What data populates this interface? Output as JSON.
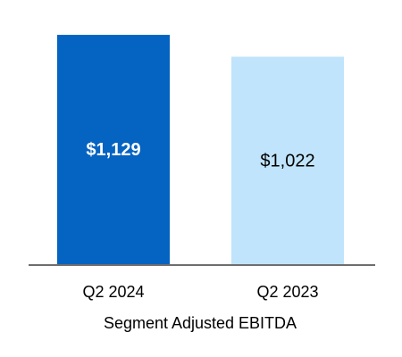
{
  "chart_data": {
    "type": "bar",
    "categories": [
      "Q2 2024",
      "Q2 2023"
    ],
    "values": [
      1129,
      1022
    ],
    "value_labels": [
      "$1,129",
      "$1,022"
    ],
    "xlabel": "Segment Adjusted EBITDA",
    "ylim": [
      0,
      1300
    ],
    "grid": false,
    "legend": "none",
    "colors": {
      "bars": [
        "#0563c1",
        "#c0e4fb"
      ],
      "value_label_text": [
        "#ffffff",
        "#000000"
      ],
      "axis": "#6e6e6e",
      "text": "#000000"
    }
  }
}
